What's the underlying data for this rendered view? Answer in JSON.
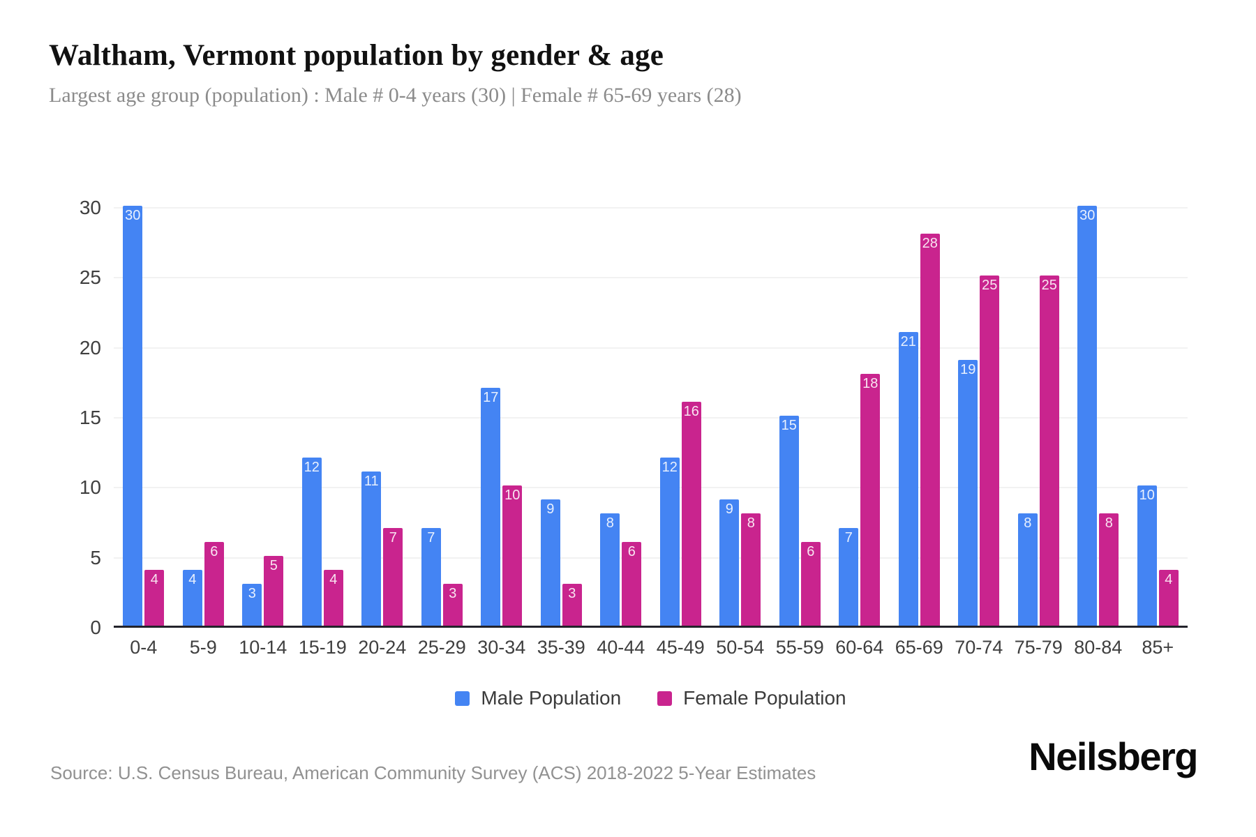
{
  "header": {
    "title": "Waltham, Vermont population by gender & age",
    "subtitle": "Largest age group (population) : Male # 0-4 years (30) | Female # 65-69 years (28)"
  },
  "chart_data": {
    "type": "bar",
    "title": "Waltham, Vermont population by gender & age",
    "categories": [
      "0-4",
      "5-9",
      "10-14",
      "15-19",
      "20-24",
      "25-29",
      "30-34",
      "35-39",
      "40-44",
      "45-49",
      "50-54",
      "55-59",
      "60-64",
      "65-69",
      "70-74",
      "75-79",
      "80-84",
      "85+"
    ],
    "series": [
      {
        "name": "Male Population",
        "color": "#4484F3",
        "values": [
          30,
          4,
          3,
          12,
          11,
          7,
          17,
          9,
          8,
          12,
          9,
          15,
          7,
          21,
          19,
          8,
          30,
          10
        ]
      },
      {
        "name": "Female Population",
        "color": "#C9248E",
        "values": [
          4,
          6,
          5,
          4,
          7,
          3,
          10,
          3,
          6,
          16,
          8,
          6,
          18,
          28,
          25,
          25,
          8,
          4
        ]
      }
    ],
    "xlabel": "",
    "ylabel": "",
    "ylim": [
      0,
      30
    ],
    "yticks": [
      0,
      5,
      10,
      15,
      20,
      25,
      30
    ],
    "grid": true,
    "bar_labels": true,
    "legend_position": "bottom"
  },
  "legend": {
    "items": [
      {
        "label": "Male Population",
        "color": "#4484F3"
      },
      {
        "label": "Female Population",
        "color": "#C9248E"
      }
    ]
  },
  "footer": {
    "source": "Source: U.S. Census Bureau, American Community Survey (ACS) 2018-2022 5-Year Estimates",
    "brand": "Neilsberg"
  },
  "colors": {
    "male": "#4484F3",
    "female": "#C9248E",
    "grid": "#f2f2f2",
    "axis": "#23232b",
    "title": "#111111",
    "subtitle": "#8b8b8b",
    "tick": "#3f3f3f",
    "source": "#919191",
    "bar_label": "rgba(255,255,255,0.88)"
  }
}
